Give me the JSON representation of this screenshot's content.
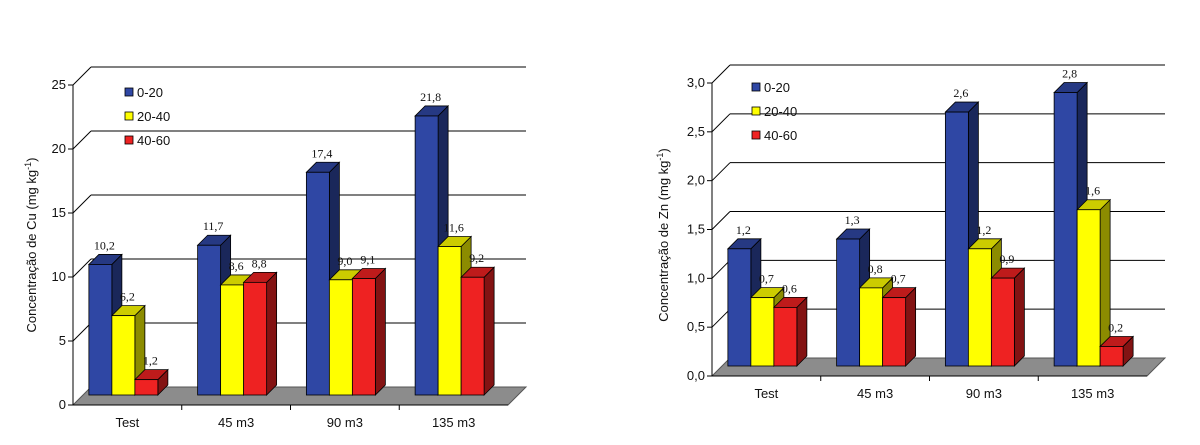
{
  "chart_data": [
    {
      "type": "bar",
      "ylabel_prefix": "Concentração de Cu (mg kg",
      "ylabel_sup": "-1",
      "ylabel_suffix": ")",
      "ylim": [
        0,
        25
      ],
      "yticks": [
        0,
        5,
        10,
        15,
        20,
        25
      ],
      "ytick_labels": [
        "0",
        "5",
        "10",
        "15",
        "20",
        "25"
      ],
      "categories": [
        "Test",
        "45 m3",
        "90 m3",
        "135 m3"
      ],
      "series": [
        {
          "name": "0-20",
          "color": "#2f47a4",
          "values": [
            10.2,
            11.7,
            17.4,
            21.8
          ],
          "labels": [
            "10,2",
            "11,7",
            "17,4",
            "21,8"
          ]
        },
        {
          "name": "20-40",
          "color": "#ffff00",
          "values": [
            6.2,
            8.6,
            9.0,
            11.6
          ],
          "labels": [
            "6,2",
            "8,6",
            "9,0",
            "11,6"
          ]
        },
        {
          "name": "40-60",
          "color": "#ee2222",
          "values": [
            1.2,
            8.8,
            9.1,
            9.2
          ],
          "labels": [
            "1,2",
            "8,8",
            "9,1",
            "9,2"
          ]
        }
      ],
      "grid": true,
      "legend": "top-left"
    },
    {
      "type": "bar",
      "ylabel_prefix": "Concentração de Zn (mg kg",
      "ylabel_sup": "-1",
      "ylabel_suffix": ")",
      "ylim": [
        0,
        3
      ],
      "yticks": [
        0,
        0.5,
        1,
        1.5,
        2,
        2.5,
        3
      ],
      "ytick_labels": [
        "0,0",
        "0,5",
        "1,0",
        "1,5",
        "2,0",
        "2,5",
        "3,0"
      ],
      "categories": [
        "Test",
        "45 m3",
        "90 m3",
        "135 m3"
      ],
      "series": [
        {
          "name": "0-20",
          "color": "#2f47a4",
          "values": [
            1.2,
            1.3,
            2.6,
            2.8
          ],
          "labels": [
            "1,2",
            "1,3",
            "2,6",
            "2,8"
          ]
        },
        {
          "name": "20-40",
          "color": "#ffff00",
          "values": [
            0.7,
            0.8,
            1.2,
            1.6
          ],
          "labels": [
            "0,7",
            "0,8",
            "1,2",
            "1,6"
          ]
        },
        {
          "name": "40-60",
          "color": "#ee2222",
          "values": [
            0.6,
            0.7,
            0.9,
            0.2
          ],
          "labels": [
            "0,6",
            "0,7",
            "0,9",
            "0,2"
          ]
        }
      ],
      "grid": true,
      "legend": "top-left"
    }
  ]
}
